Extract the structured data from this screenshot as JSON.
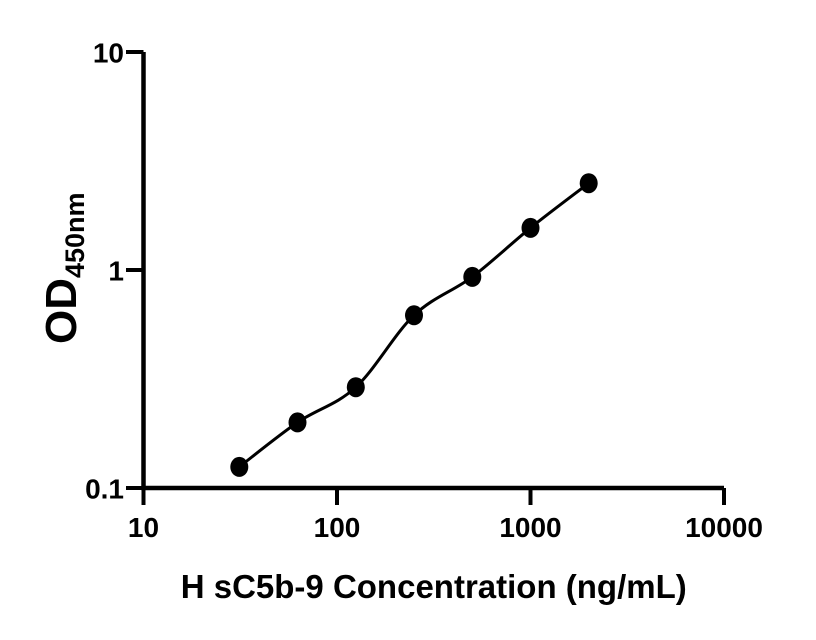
{
  "figure": {
    "background": "#ffffff",
    "foreground": "#000000"
  },
  "chart_data": {
    "type": "scatter",
    "xlabel": "H sC5b-9 Concentration (ng/mL)",
    "ylabel": "OD",
    "ylabel_subscript": "450nm",
    "x_scale": "log",
    "y_scale": "log",
    "xlim": [
      10,
      10000
    ],
    "ylim": [
      0.1,
      10
    ],
    "x_ticks": [
      10,
      100,
      1000,
      10000
    ],
    "x_tick_labels": [
      "10",
      "100",
      "1000",
      "10000"
    ],
    "y_ticks": [
      10,
      1,
      0.1
    ],
    "y_tick_labels": [
      "10",
      "1",
      "0.1"
    ],
    "grid": false,
    "legend": null,
    "marker": {
      "shape": "circle",
      "color": "#000000"
    },
    "fit_line": {
      "show": true,
      "color": "#000000"
    },
    "series": [
      {
        "x": [
          31.25,
          62.5,
          125,
          250,
          500,
          1000,
          2000
        ],
        "y": [
          0.125,
          0.2,
          0.29,
          0.62,
          0.93,
          1.56,
          2.5
        ]
      }
    ]
  }
}
